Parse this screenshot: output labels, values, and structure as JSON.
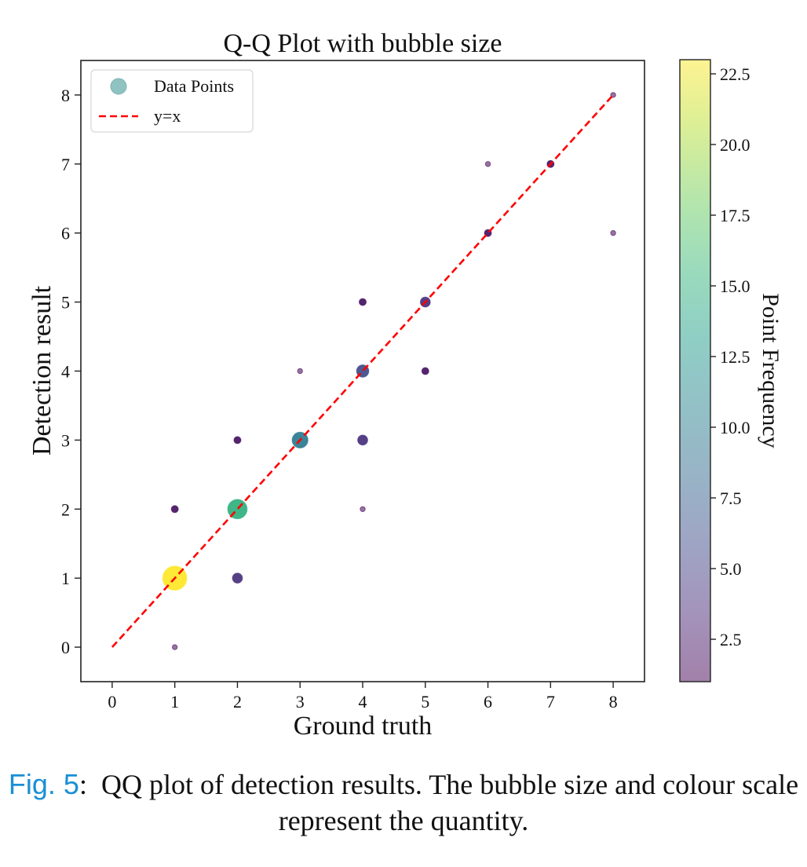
{
  "chart_data": {
    "type": "scatter",
    "title": "Q-Q Plot with bubble size",
    "xlabel": "Ground truth",
    "ylabel": "Detection result",
    "xlim": [
      -0.5,
      8.5
    ],
    "ylim": [
      -0.5,
      8.5
    ],
    "xticks": [
      0,
      1,
      2,
      3,
      4,
      5,
      6,
      7,
      8
    ],
    "yticks": [
      0,
      1,
      2,
      3,
      4,
      5,
      6,
      7,
      8
    ],
    "grid": false,
    "legend": {
      "placement": "top-left",
      "entries": [
        {
          "label": "Data Points",
          "kind": "marker",
          "color": "#8ec3c2"
        },
        {
          "label": "y=x",
          "kind": "dashed-line",
          "color": "#ff0000"
        }
      ]
    },
    "reference_line": {
      "label": "y=x",
      "from": [
        0,
        0
      ],
      "to": [
        8,
        8
      ],
      "color": "#ff0000",
      "style": "dashed"
    },
    "series": [
      {
        "name": "Data Points",
        "size_and_color_encode": "Point Frequency",
        "points": [
          {
            "x": 1,
            "y": 0,
            "frequency": 1
          },
          {
            "x": 1,
            "y": 1,
            "frequency": 23
          },
          {
            "x": 1,
            "y": 2,
            "frequency": 2
          },
          {
            "x": 2,
            "y": 1,
            "frequency": 4
          },
          {
            "x": 2,
            "y": 2,
            "frequency": 15
          },
          {
            "x": 2,
            "y": 3,
            "frequency": 2
          },
          {
            "x": 3,
            "y": 3,
            "frequency": 10
          },
          {
            "x": 3,
            "y": 4,
            "frequency": 1
          },
          {
            "x": 4,
            "y": 2,
            "frequency": 1
          },
          {
            "x": 4,
            "y": 3,
            "frequency": 4
          },
          {
            "x": 4,
            "y": 4,
            "frequency": 6
          },
          {
            "x": 4,
            "y": 5,
            "frequency": 2
          },
          {
            "x": 5,
            "y": 4,
            "frequency": 2
          },
          {
            "x": 5,
            "y": 5,
            "frequency": 4
          },
          {
            "x": 6,
            "y": 6,
            "frequency": 2
          },
          {
            "x": 6,
            "y": 7,
            "frequency": 1
          },
          {
            "x": 7,
            "y": 7,
            "frequency": 2
          },
          {
            "x": 8,
            "y": 6,
            "frequency": 1
          },
          {
            "x": 8,
            "y": 8,
            "frequency": 1
          }
        ]
      }
    ],
    "colorbar": {
      "label": "Point Frequency",
      "range": [
        1,
        23
      ],
      "ticks": [
        "2.5",
        "5.0",
        "7.5",
        "10.0",
        "12.5",
        "15.0",
        "17.5",
        "20.0",
        "22.5"
      ],
      "tick_values": [
        2.5,
        5.0,
        7.5,
        10.0,
        12.5,
        15.0,
        17.5,
        20.0,
        22.5
      ],
      "colormap": "viridis",
      "alpha": 0.5
    }
  },
  "caption": {
    "label": "Fig. 5",
    "separator": ":",
    "text": "QQ plot of detection results. The bubble size and colour scale represent the quantity."
  }
}
